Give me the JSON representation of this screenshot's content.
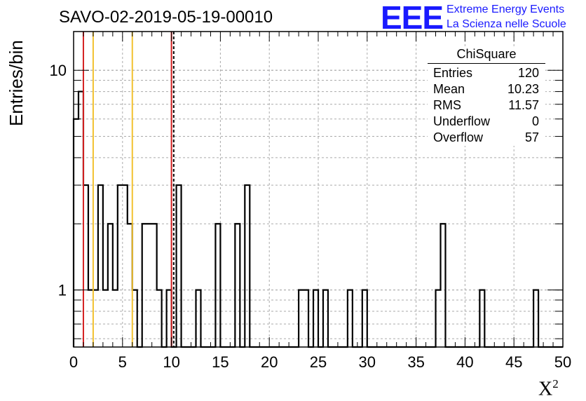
{
  "title": "SAVO-02-2019-05-19-00010",
  "logo": {
    "mark": "EEE",
    "line1": "Extreme Energy Events",
    "line2": "La Scienza nelle Scuole"
  },
  "stats": {
    "name": "ChiSquare",
    "rows": [
      {
        "label": "Entries",
        "value": "120"
      },
      {
        "label": "Mean",
        "value": "10.23"
      },
      {
        "label": "RMS",
        "value": "11.57"
      },
      {
        "label": "Underflow",
        "value": "0"
      },
      {
        "label": "Overflow",
        "value": "57"
      }
    ]
  },
  "axes": {
    "ylabel": "Entries/bin",
    "xlabel_base": "X",
    "xlabel_sup": "2"
  },
  "chart_data": {
    "type": "histogram",
    "title": "SAVO-02-2019-05-19-00010",
    "xlabel": "X²",
    "ylabel": "Entries/bin",
    "xlim": [
      0,
      50
    ],
    "ylim": [
      0.55,
      15
    ],
    "yscale": "log",
    "grid": true,
    "x_ticks": [
      0,
      5,
      10,
      15,
      20,
      25,
      30,
      35,
      40,
      45,
      50
    ],
    "y_ticks": [
      1,
      10
    ],
    "bin_width": 0.5,
    "bins": [
      {
        "x": 0.0,
        "count": 6
      },
      {
        "x": 0.5,
        "count": 8
      },
      {
        "x": 1.0,
        "count": 3
      },
      {
        "x": 1.5,
        "count": 1
      },
      {
        "x": 2.0,
        "count": 1
      },
      {
        "x": 2.5,
        "count": 3
      },
      {
        "x": 3.0,
        "count": 1
      },
      {
        "x": 3.5,
        "count": 2
      },
      {
        "x": 4.0,
        "count": 1
      },
      {
        "x": 4.5,
        "count": 3
      },
      {
        "x": 5.0,
        "count": 3
      },
      {
        "x": 5.5,
        "count": 2
      },
      {
        "x": 6.0,
        "count": 1
      },
      {
        "x": 7.0,
        "count": 2
      },
      {
        "x": 7.5,
        "count": 2
      },
      {
        "x": 8.0,
        "count": 2
      },
      {
        "x": 8.5,
        "count": 1
      },
      {
        "x": 9.5,
        "count": 1
      },
      {
        "x": 10.5,
        "count": 3
      },
      {
        "x": 12.5,
        "count": 1
      },
      {
        "x": 14.5,
        "count": 2
      },
      {
        "x": 16.5,
        "count": 2
      },
      {
        "x": 17.5,
        "count": 3
      },
      {
        "x": 23.0,
        "count": 1
      },
      {
        "x": 23.5,
        "count": 1
      },
      {
        "x": 24.5,
        "count": 1
      },
      {
        "x": 25.5,
        "count": 1
      },
      {
        "x": 28.0,
        "count": 1
      },
      {
        "x": 29.5,
        "count": 1
      },
      {
        "x": 37.0,
        "count": 1
      },
      {
        "x": 37.5,
        "count": 2
      },
      {
        "x": 41.5,
        "count": 1
      },
      {
        "x": 47.0,
        "count": 1
      }
    ],
    "vertical_lines": [
      {
        "x": 1.0,
        "color": "#d42020",
        "style": "solid"
      },
      {
        "x": 2.0,
        "color": "#f2c230",
        "style": "solid"
      },
      {
        "x": 6.0,
        "color": "#f2c230",
        "style": "solid"
      },
      {
        "x": 10.0,
        "color": "#d42020",
        "style": "solid"
      },
      {
        "x": 10.23,
        "color": "#000000",
        "style": "dashed"
      }
    ]
  }
}
